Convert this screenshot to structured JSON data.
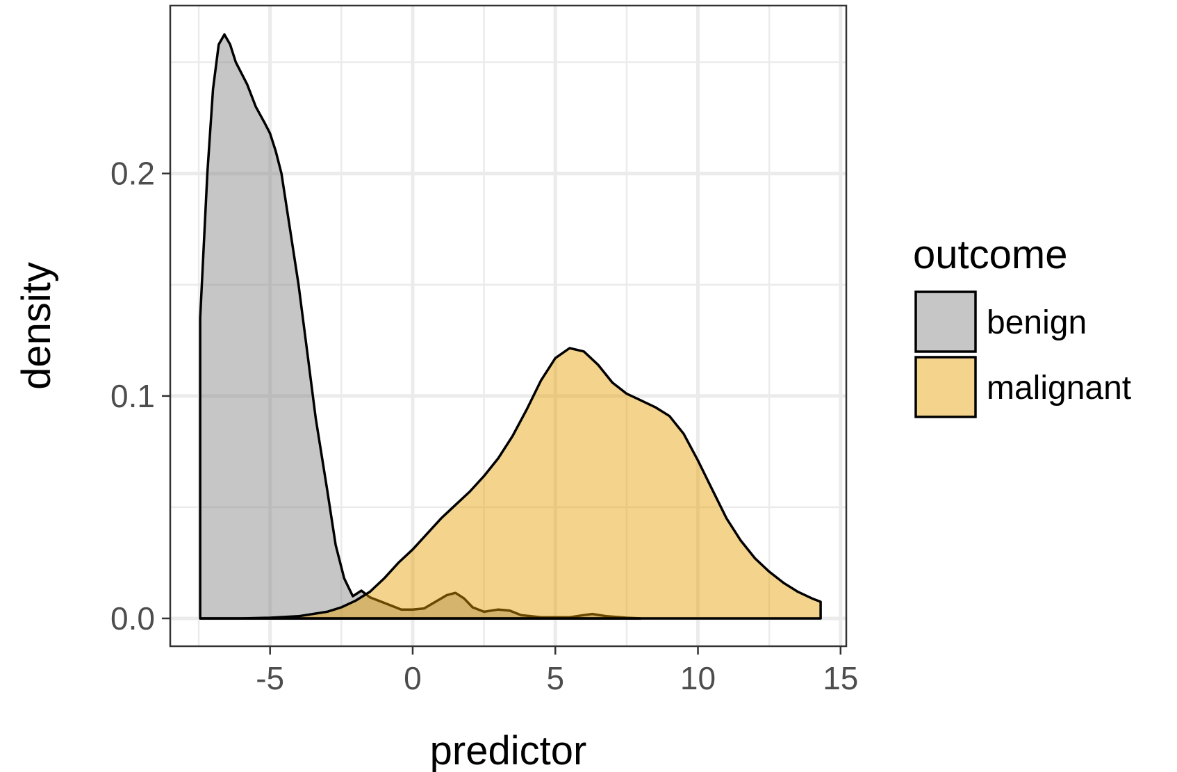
{
  "chart_data": {
    "type": "area",
    "xlabel": "predictor",
    "ylabel": "density",
    "xlim": [
      -8.5,
      15.2
    ],
    "ylim": [
      -0.0125,
      0.2755
    ],
    "x_ticks": [
      -5,
      0,
      5,
      10,
      15
    ],
    "x_tick_labels": [
      "-5",
      "0",
      "5",
      "10",
      "15"
    ],
    "y_ticks": [
      0.0,
      0.1,
      0.2
    ],
    "y_tick_labels": [
      "0.0",
      "0.1",
      "0.2"
    ],
    "grid": true,
    "legend": {
      "title": "outcome",
      "position": "right"
    },
    "series": [
      {
        "name": "benign",
        "color": "#808080",
        "points": [
          [
            -7.45,
            0.0
          ],
          [
            -7.45,
            0.135
          ],
          [
            -7.2,
            0.2
          ],
          [
            -7.0,
            0.238
          ],
          [
            -6.8,
            0.258
          ],
          [
            -6.6,
            0.2625
          ],
          [
            -6.4,
            0.258
          ],
          [
            -6.2,
            0.25
          ],
          [
            -6.0,
            0.245
          ],
          [
            -5.8,
            0.24
          ],
          [
            -5.5,
            0.23
          ],
          [
            -5.2,
            0.223
          ],
          [
            -5.0,
            0.218
          ],
          [
            -4.8,
            0.21
          ],
          [
            -4.6,
            0.2
          ],
          [
            -4.3,
            0.175
          ],
          [
            -4.0,
            0.15
          ],
          [
            -3.7,
            0.12
          ],
          [
            -3.4,
            0.09
          ],
          [
            -3.0,
            0.058
          ],
          [
            -2.7,
            0.033
          ],
          [
            -2.4,
            0.018
          ],
          [
            -2.1,
            0.01
          ],
          [
            -1.8,
            0.0125
          ],
          [
            -1.5,
            0.0095
          ],
          [
            -1.2,
            0.008
          ],
          [
            -0.8,
            0.006
          ],
          [
            -0.4,
            0.004
          ],
          [
            0.0,
            0.004
          ],
          [
            0.4,
            0.0045
          ],
          [
            0.8,
            0.0075
          ],
          [
            1.2,
            0.0105
          ],
          [
            1.5,
            0.0115
          ],
          [
            1.8,
            0.009
          ],
          [
            2.1,
            0.005
          ],
          [
            2.5,
            0.003
          ],
          [
            3.0,
            0.004
          ],
          [
            3.4,
            0.0035
          ],
          [
            3.8,
            0.0015
          ],
          [
            4.5,
            0.0005
          ],
          [
            5.5,
            0.0005
          ],
          [
            6.0,
            0.0015
          ],
          [
            6.3,
            0.002
          ],
          [
            6.8,
            0.001
          ],
          [
            7.5,
            0.0003
          ],
          [
            8.0,
            0.0
          ],
          [
            -7.45,
            0.0
          ]
        ]
      },
      {
        "name": "malignant",
        "color": "#E69F00",
        "points": [
          [
            -7.45,
            0.0
          ],
          [
            -6.0,
            0.0
          ],
          [
            -5.0,
            0.0003
          ],
          [
            -4.0,
            0.001
          ],
          [
            -3.0,
            0.003
          ],
          [
            -2.5,
            0.005
          ],
          [
            -2.0,
            0.008
          ],
          [
            -1.5,
            0.012
          ],
          [
            -1.0,
            0.018
          ],
          [
            -0.5,
            0.025
          ],
          [
            0.0,
            0.031
          ],
          [
            0.5,
            0.038
          ],
          [
            1.0,
            0.045
          ],
          [
            1.5,
            0.051
          ],
          [
            2.0,
            0.057
          ],
          [
            2.5,
            0.064
          ],
          [
            3.0,
            0.072
          ],
          [
            3.5,
            0.082
          ],
          [
            4.0,
            0.094
          ],
          [
            4.5,
            0.107
          ],
          [
            5.0,
            0.117
          ],
          [
            5.5,
            0.1215
          ],
          [
            6.0,
            0.12
          ],
          [
            6.5,
            0.114
          ],
          [
            7.0,
            0.106
          ],
          [
            7.5,
            0.101
          ],
          [
            8.0,
            0.098
          ],
          [
            8.5,
            0.095
          ],
          [
            9.0,
            0.091
          ],
          [
            9.5,
            0.083
          ],
          [
            10.0,
            0.071
          ],
          [
            10.5,
            0.058
          ],
          [
            11.0,
            0.045
          ],
          [
            11.5,
            0.035
          ],
          [
            12.0,
            0.027
          ],
          [
            12.5,
            0.021
          ],
          [
            13.0,
            0.016
          ],
          [
            13.5,
            0.012
          ],
          [
            14.0,
            0.009
          ],
          [
            14.3,
            0.0075
          ],
          [
            14.3,
            0.0
          ],
          [
            -7.45,
            0.0
          ]
        ]
      }
    ]
  }
}
